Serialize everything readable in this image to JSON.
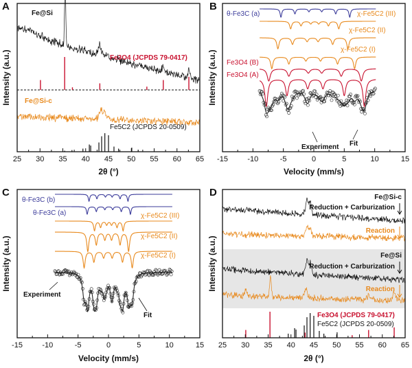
{
  "colors": {
    "axis": "#111111",
    "black": "#111111",
    "red": "#c8102e",
    "orange": "#e8891c",
    "blue": "#3b3b9a",
    "fit": "#222222",
    "shade": "#e6e6e6"
  },
  "chart_data": [
    {
      "panel": "A",
      "type": "line",
      "xlabel": "2θ (°)",
      "ylabel": "Intensity (a.u.)",
      "xlim": [
        25,
        65
      ],
      "xticks": [
        25,
        30,
        35,
        40,
        45,
        50,
        55,
        60,
        65
      ],
      "tick_labels": [
        "25",
        "30",
        "35",
        "40",
        "45",
        "50",
        "55",
        "60",
        "65"
      ],
      "labels": {
        "s1": "Fe@Si",
        "s2": "Fe3O4 (JCPDS 79-0417)",
        "s3": "Fe@Si-c",
        "s4": "Fe5C2 (JCPDS 20-0509)"
      },
      "series": [
        {
          "name": "Fe@Si",
          "peaks": [
            35.5,
            43.1,
            57.0,
            62.6
          ]
        },
        {
          "name": "Fe3O4 (JCPDS 79-0417)",
          "x": [
            30.1,
            35.4,
            37.1,
            43.1,
            53.4,
            57.0,
            62.6
          ],
          "values": [
            30,
            100,
            8,
            20,
            10,
            30,
            40
          ]
        },
        {
          "name": "Fe@Si-c",
          "peaks": [
            43.3,
            44.2
          ]
        },
        {
          "name": "Fe5C2 (JCPDS 20-0509)",
          "x": [
            35.4,
            37.0,
            39.4,
            40.8,
            41.1,
            42.9,
            43.5,
            44.2,
            45.0,
            46.2,
            47.2,
            50.1,
            51.5
          ],
          "values": [
            5,
            8,
            15,
            35,
            30,
            45,
            75,
            90,
            80,
            25,
            15,
            20,
            10
          ]
        }
      ]
    },
    {
      "panel": "B",
      "type": "line",
      "xlabel": "Velocity (mm/s)",
      "ylabel": "Intensity (a.u.)",
      "xlim": [
        -15,
        15
      ],
      "xticks": [
        -15,
        -10,
        -5,
        0,
        5,
        10,
        15
      ],
      "tick_labels": [
        "-15",
        "-10",
        "-5",
        "0",
        "5",
        "10",
        "15"
      ],
      "labels": {
        "theta_a": "θ-Fe3C (a)",
        "chi3": "χ-Fe5C2 (III)",
        "chi2": "χ-Fe5C2 (II)",
        "chi1": "χ-Fe5C2 (I)",
        "fe3o4b": "Fe3O4 (B)",
        "fe3o4a": "Fe3O4 (A)",
        "experiment": "Experiment",
        "fit": "Fit"
      },
      "series": [
        {
          "name": "θ-Fe3C (a)",
          "lines": [
            -5.4,
            -3.1,
            -0.8,
            1.3,
            3.6,
            5.9
          ]
        },
        {
          "name": "χ-Fe5C2 (III)",
          "lines": [
            -3.8,
            -2.1,
            -0.5,
            0.8,
            2.4,
            4.1
          ]
        },
        {
          "name": "χ-Fe5C2 (II)",
          "lines": [
            -5.9,
            -3.5,
            -1.1,
            0.7,
            3.1,
            5.6
          ]
        },
        {
          "name": "χ-Fe5C2 (I)",
          "lines": [
            -6.9,
            -4.1,
            -1.3,
            1.1,
            3.9,
            6.7
          ]
        },
        {
          "name": "Fe3O4 (B)",
          "lines": [
            -7.4,
            -4.1,
            -0.9,
            1.3,
            4.5,
            7.8
          ]
        },
        {
          "name": "Fe3O4 (A)",
          "lines": [
            -7.8,
            -4.4,
            -1.0,
            1.5,
            5.0,
            8.3
          ]
        }
      ]
    },
    {
      "panel": "C",
      "type": "line",
      "xlabel": "Velocity (mm/s)",
      "ylabel": "Intensity (a.u.)",
      "xlim": [
        -15,
        15
      ],
      "xticks": [
        -15,
        -10,
        -5,
        0,
        5,
        10,
        15
      ],
      "tick_labels": [
        "-15",
        "-10",
        "-5",
        "0",
        "5",
        "10",
        "15"
      ],
      "labels": {
        "theta_b": "θ-Fe3C (b)",
        "theta_a": "θ-Fe3C (a)",
        "chi3": "χ-Fe5C2 (III)",
        "chi2": "χ-Fe5C2 (II)",
        "chi1": "χ-Fe5C2 (I)",
        "experiment": "Experiment",
        "fit": "Fit"
      },
      "series": [
        {
          "name": "θ-Fe3C (b)",
          "lines": [
            -3.2,
            -1.9,
            -0.5,
            0.6,
            1.9,
            3.2
          ]
        },
        {
          "name": "θ-Fe3C (a)",
          "lines": [
            -3.5,
            -2.0,
            -0.6,
            0.7,
            2.1,
            3.6
          ]
        },
        {
          "name": "χ-Fe5C2 (III)",
          "lines": [
            -2.3,
            -1.3,
            -0.3,
            0.5,
            1.4,
            2.4
          ]
        },
        {
          "name": "χ-Fe5C2 (II)",
          "lines": [
            -3.4,
            -2.0,
            -0.6,
            0.5,
            1.9,
            3.3
          ]
        },
        {
          "name": "χ-Fe5C2 (I)",
          "lines": [
            -4.0,
            -2.4,
            -0.8,
            0.6,
            2.3,
            3.9
          ]
        }
      ]
    },
    {
      "panel": "D",
      "type": "line",
      "xlabel": "2θ (°)",
      "ylabel": "Intensity (a.u.)",
      "xlim": [
        25,
        65
      ],
      "xticks": [
        25,
        30,
        35,
        40,
        45,
        50,
        55,
        60,
        65
      ],
      "tick_labels": [
        "25",
        "30",
        "35",
        "40",
        "45",
        "50",
        "55",
        "60",
        "65"
      ],
      "labels": {
        "g1": "Fe@Si-c",
        "rc1": "Reduction + Carburization",
        "r1": "Reaction",
        "g2": "Fe@Si",
        "rc2": "Reduction + Carburization",
        "r2": "Reaction",
        "ref1": "Fe3O4 (JCPDS 79-0417)",
        "ref2": "Fe5C2 (JCPDS 20-0509)"
      },
      "series": [
        {
          "name": "Fe@Si-c Reduction + Carburization",
          "peaks": [
            43.5,
            44.2
          ]
        },
        {
          "name": "Fe@Si-c Reaction",
          "peaks": [
            43.5,
            44.2
          ]
        },
        {
          "name": "Fe@Si Reduction + Carburization",
          "peaks": [
            43.5,
            44.2
          ]
        },
        {
          "name": "Fe@Si Reaction",
          "peaks": [
            30.1,
            35.5,
            43.3,
            57.0,
            62.6
          ]
        },
        {
          "name": "Fe3O4 (JCPDS 79-0417)",
          "x": [
            30.1,
            35.4,
            43.1,
            53.4,
            57.0,
            62.6
          ],
          "values": [
            30,
            100,
            20,
            10,
            30,
            40
          ]
        },
        {
          "name": "Fe5C2 (JCPDS 20-0509)",
          "x": [
            39.4,
            40.8,
            41.1,
            42.9,
            43.5,
            44.2,
            45.0,
            46.2,
            47.2,
            50.1
          ],
          "values": [
            15,
            35,
            30,
            45,
            75,
            90,
            80,
            25,
            15,
            20
          ]
        }
      ]
    }
  ]
}
